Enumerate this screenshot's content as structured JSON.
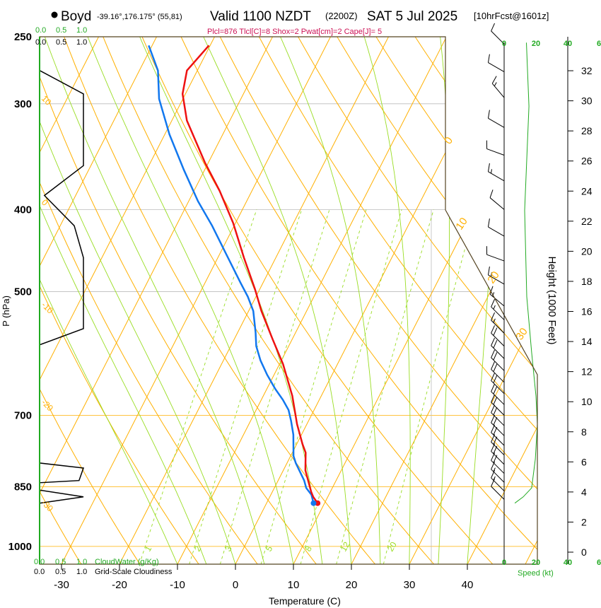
{
  "header": {
    "station": "Boyd",
    "coords": "-39.16°,176.175° (55,81)",
    "valid": "Valid 1100 NZDT",
    "utc": "(2200Z)",
    "date": "SAT 5 Jul 2025",
    "forecast": "[10hrFcst@1601z]",
    "indices": "Plcl=876 Tlcl[C]=8 Shox=2 Pwat[cm]=2 Cape[J]= 5"
  },
  "colors": {
    "temperature": "#ee1111",
    "dewpoint": "#1177ee",
    "isotherm": "#ffb000",
    "moist": "#99dd22",
    "cloudwater": "#22aa22",
    "frame": "#554422"
  },
  "legend": {
    "cloud_ticks": [
      "0.0",
      "0.5",
      "1.0"
    ],
    "cloudwater_label": "CloudWater (g/Kg)",
    "cloudiness_label": "Grid-Scale Cloudiness",
    "speed_ticks": [
      "0",
      "20",
      "40",
      "6"
    ],
    "speed_label": "Speed (kt)"
  },
  "chart_data": {
    "type": "line",
    "title": "Skew-T log-P sounding",
    "xlabel": "Temperature (C)",
    "ylabel": "P (hPa)",
    "y2label": "Height (1000 Feet)",
    "pressure_ticks": [
      "250",
      "300",
      "400",
      "500",
      "700",
      "850",
      "1000"
    ],
    "temperature_ticks": [
      "-30",
      "-20",
      "-10",
      "0",
      "10",
      "20",
      "30",
      "40"
    ],
    "height_ticks": [
      "0",
      "2",
      "4",
      "6",
      "8",
      "10",
      "12",
      "14",
      "16",
      "18",
      "20",
      "22",
      "24",
      "26",
      "28",
      "30",
      "32"
    ],
    "isotherm_labels": [
      "0",
      "10",
      "20",
      "30"
    ],
    "adiabat_labels": [
      "10",
      "0",
      "-10",
      "-20",
      "-30"
    ],
    "mixing_ratio_labels": [
      "1",
      "2",
      "3",
      "5",
      "8",
      "12",
      "20"
    ],
    "xlim": [
      -33,
      37
    ],
    "ylim": [
      1049,
      250
    ],
    "series": [
      {
        "name": "temperature",
        "points": [
          [
            889,
            8.8
          ],
          [
            874,
            7.5
          ],
          [
            862,
            6.7
          ],
          [
            813,
            3.8
          ],
          [
            775,
            2.3
          ],
          [
            757,
            1.0
          ],
          [
            717,
            -1.7
          ],
          [
            664,
            -5.0
          ],
          [
            609,
            -9.4
          ],
          [
            569,
            -13.4
          ],
          [
            527,
            -17.8
          ],
          [
            497,
            -20.8
          ],
          [
            456,
            -25.5
          ],
          [
            415,
            -30.4
          ],
          [
            380,
            -35.6
          ],
          [
            352,
            -40.6
          ],
          [
            314,
            -47.4
          ],
          [
            292,
            -50.5
          ],
          [
            274,
            -51.8
          ],
          [
            256,
            -50.2
          ]
        ]
      },
      {
        "name": "dewpoint",
        "points": [
          [
            889,
            8.1
          ],
          [
            869,
            7.0
          ],
          [
            853,
            5.5
          ],
          [
            836,
            4.5
          ],
          [
            797,
            1.5
          ],
          [
            782,
            0.5
          ],
          [
            738,
            -1.4
          ],
          [
            711,
            -3.0
          ],
          [
            690,
            -4.4
          ],
          [
            671,
            -6.3
          ],
          [
            652,
            -8.5
          ],
          [
            627,
            -11.2
          ],
          [
            603,
            -13.6
          ],
          [
            580,
            -15.6
          ],
          [
            559,
            -16.9
          ],
          [
            527,
            -19.2
          ],
          [
            507,
            -21.4
          ],
          [
            488,
            -23.9
          ],
          [
            452,
            -28.8
          ],
          [
            418,
            -33.8
          ],
          [
            391,
            -38.4
          ],
          [
            359,
            -43.6
          ],
          [
            326,
            -49.2
          ],
          [
            296,
            -54.1
          ],
          [
            274,
            -56.8
          ],
          [
            256,
            -60.6
          ]
        ]
      },
      {
        "name": "cloudiness",
        "points": [
          [
            250,
            0
          ],
          [
            274,
            0
          ],
          [
            292,
            1
          ],
          [
            355,
            1
          ],
          [
            385,
            0.11
          ],
          [
            418,
            0.79
          ],
          [
            456,
            1
          ],
          [
            553,
            1
          ],
          [
            578,
            0
          ],
          [
            797,
            0
          ],
          [
            808,
            1
          ],
          [
            836,
            0.9
          ],
          [
            841,
            0
          ],
          [
            858,
            0
          ],
          [
            874,
            1
          ],
          [
            889,
            0
          ]
        ]
      },
      {
        "name": "wind_speed_kt",
        "points": [
          [
            254,
            14
          ],
          [
            302,
            15.6
          ],
          [
            401,
            12.9
          ],
          [
            507,
            14.2
          ],
          [
            590,
            17.3
          ],
          [
            664,
            20
          ],
          [
            717,
            20.9
          ],
          [
            789,
            19.6
          ],
          [
            853,
            17.3
          ],
          [
            874,
            12
          ],
          [
            889,
            6.7
          ]
        ]
      }
    ],
    "wind_barbs": [
      [
        255,
        315,
        10
      ],
      [
        275,
        300,
        10
      ],
      [
        295,
        320,
        15
      ],
      [
        320,
        300,
        10
      ],
      [
        345,
        290,
        10
      ],
      [
        370,
        300,
        15
      ],
      [
        400,
        310,
        10
      ],
      [
        430,
        300,
        10
      ],
      [
        460,
        290,
        10
      ],
      [
        490,
        300,
        15
      ],
      [
        520,
        310,
        15
      ],
      [
        540,
        315,
        15
      ],
      [
        560,
        315,
        15
      ],
      [
        580,
        315,
        20
      ],
      [
        600,
        315,
        20
      ],
      [
        620,
        315,
        20
      ],
      [
        640,
        315,
        20
      ],
      [
        660,
        315,
        20
      ],
      [
        680,
        315,
        20
      ],
      [
        700,
        315,
        20
      ],
      [
        720,
        315,
        20
      ],
      [
        740,
        315,
        20
      ],
      [
        760,
        315,
        20
      ],
      [
        780,
        315,
        20
      ],
      [
        800,
        315,
        20
      ],
      [
        820,
        315,
        20
      ],
      [
        840,
        315,
        15
      ],
      [
        860,
        315,
        15
      ],
      [
        880,
        315,
        10
      ]
    ]
  }
}
